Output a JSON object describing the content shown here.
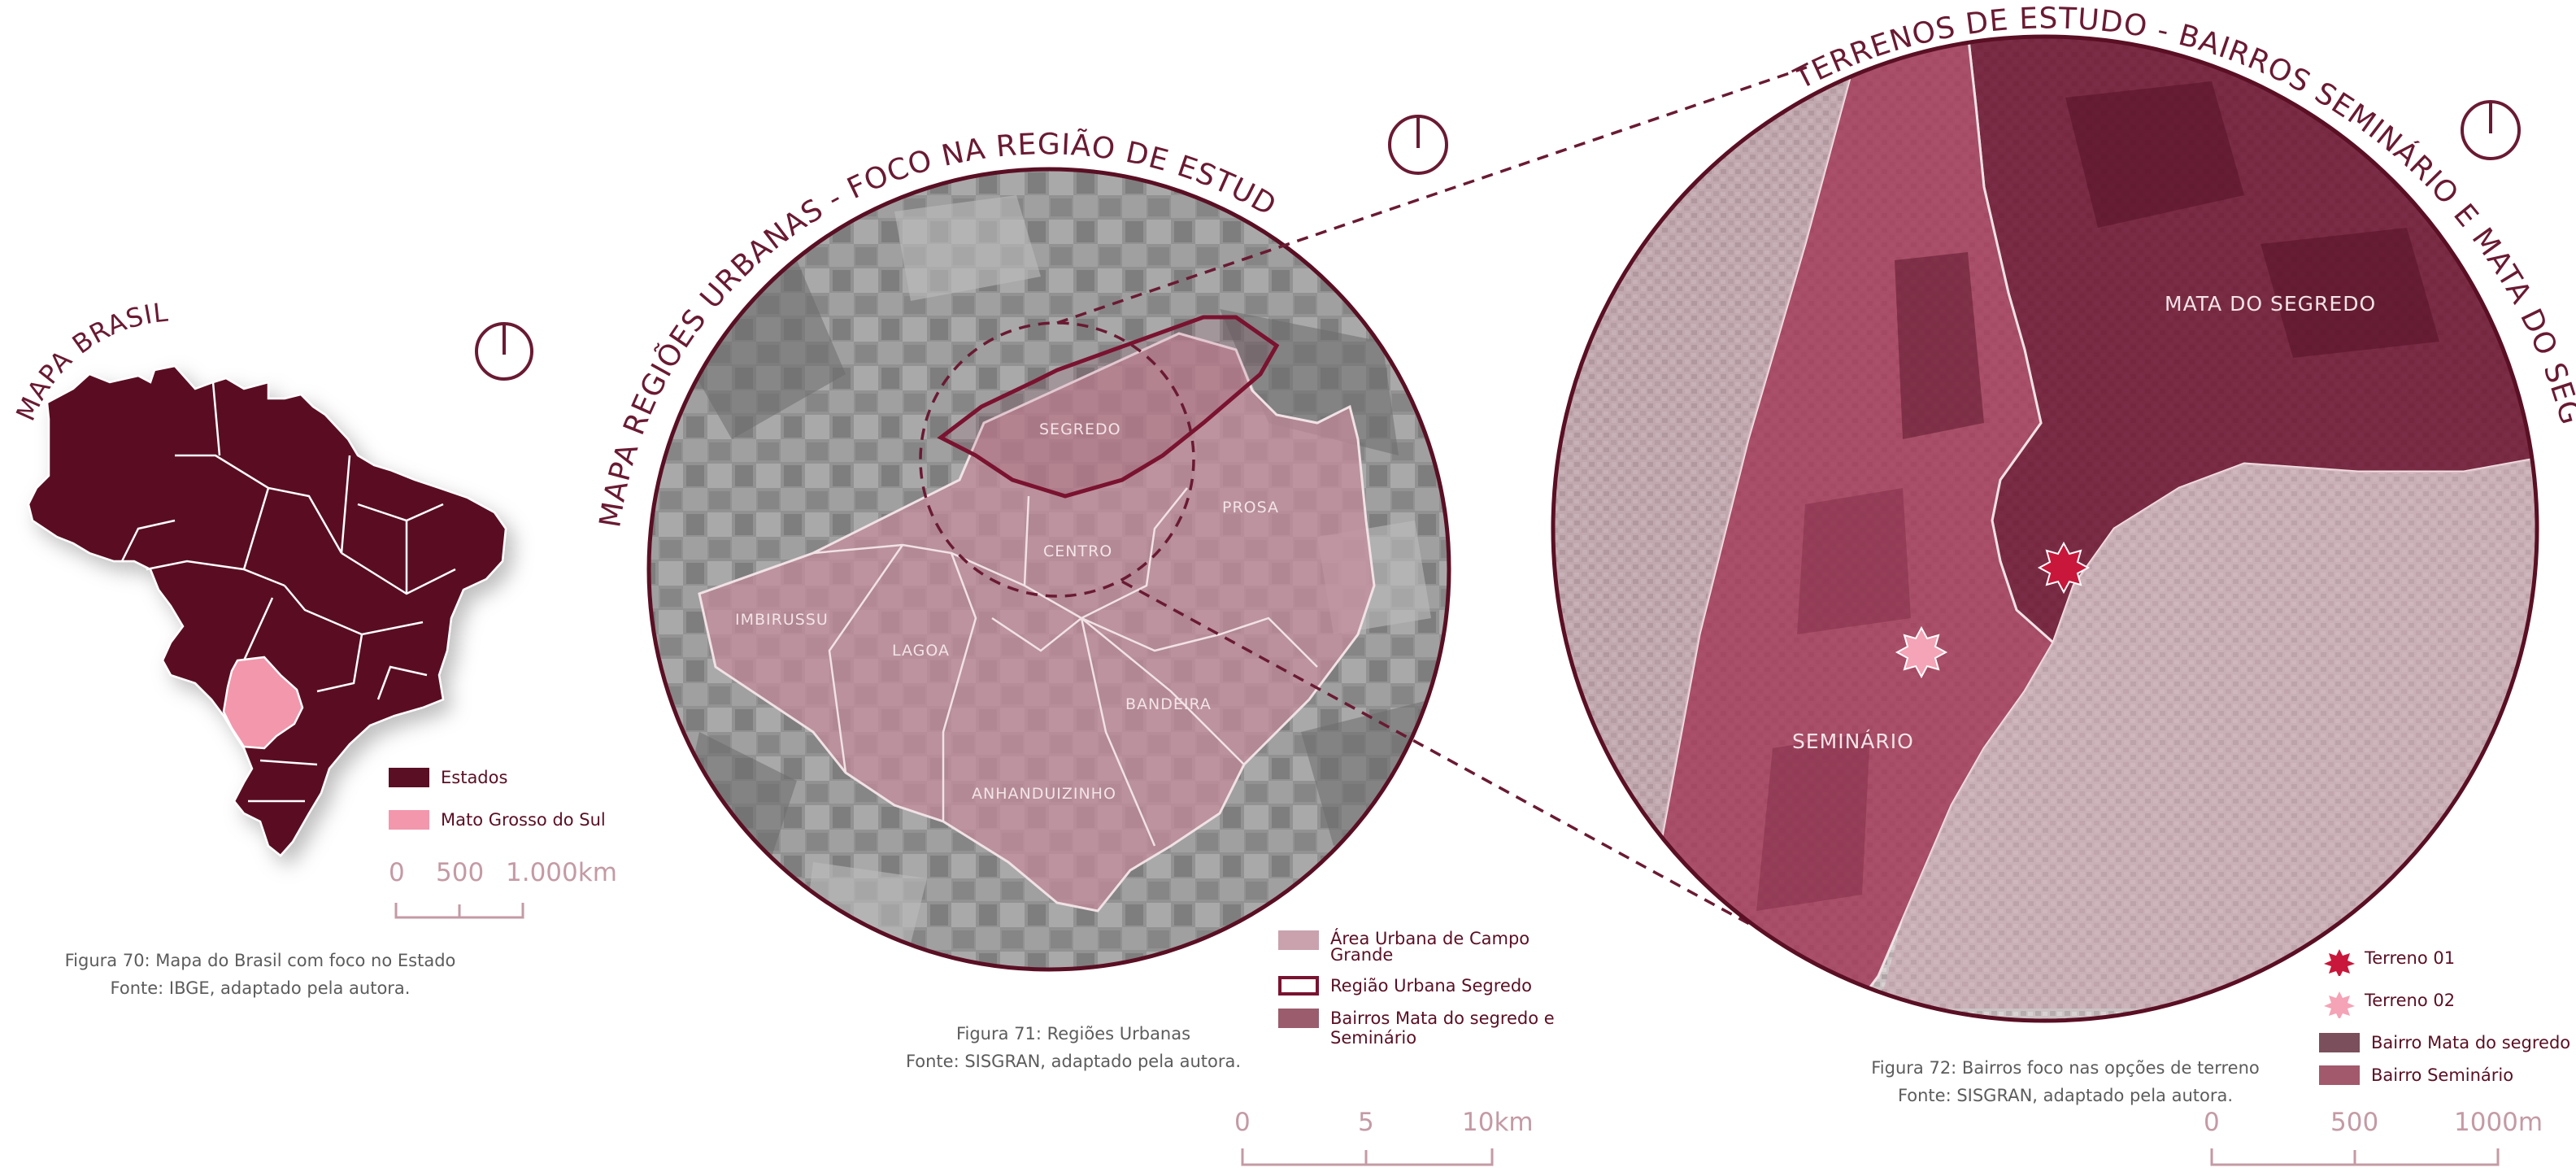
{
  "map_brasil": {
    "title": "MAPA BRASIL",
    "legend": [
      {
        "label": "Estados",
        "color": "#5a0f24"
      },
      {
        "label": "Mato Grosso do Sul",
        "color": "#f397ad"
      }
    ],
    "scale": [
      "0",
      "500",
      "1.000km"
    ],
    "caption_line1": "Figura 70: Mapa do Brasil com foco no Estado",
    "caption_line2": "Fonte: IBGE, adaptado pela autora."
  },
  "map_regioes": {
    "title": "MAPA REGIÕES URBANAS - FOCO NA REGIÃO DE ESTUDO",
    "regions": {
      "segredo": "SEGREDO",
      "centro": "CENTRO",
      "prosa": "PROSA",
      "imbirussu": "IMBIRUSSU",
      "lagoa": "LAGOA",
      "bandeira": "BANDEIRA",
      "anhanduizinho": "ANHANDUIZINHO"
    },
    "legend": [
      {
        "label": "Área Urbana de Campo Grande",
        "color": "#c9a2ad"
      },
      {
        "label": "Região Urbana Segredo",
        "color": "#7a1230"
      },
      {
        "label": "Bairros Mata do segredo e Seminário",
        "color": "#9b5c6d"
      }
    ],
    "scale": [
      "0",
      "5",
      "10km"
    ],
    "caption_line1": "Figura 71: Regiões Urbanas",
    "caption_line2": "Fonte: SISGRAN, adaptado pela autora."
  },
  "map_terrenos": {
    "title": "TERRENOS DE ESTUDO - BAIRROS SEMINÁRIO E MATA DO SEGREDO",
    "labels": {
      "mata": "MATA DO SEGREDO",
      "seminario": "SEMINÁRIO"
    },
    "legend": [
      {
        "label": "Terreno 01",
        "color": "#c8173a"
      },
      {
        "label": "Terreno 02",
        "color": "#f5a3b6"
      },
      {
        "label": "Bairro Mata do segredo",
        "color": "#7b4f5c"
      },
      {
        "label": "Bairro Seminário",
        "color": "#a2596b"
      }
    ],
    "scale": [
      "0",
      "500",
      "1000m"
    ],
    "caption_line1": "Figura 72: Bairros foco nas opções de terreno",
    "caption_line2": "Fonte: SISGRAN, adaptado pela autora."
  },
  "icons": [
    "north-arrow-icon",
    "star-marker-icon"
  ]
}
